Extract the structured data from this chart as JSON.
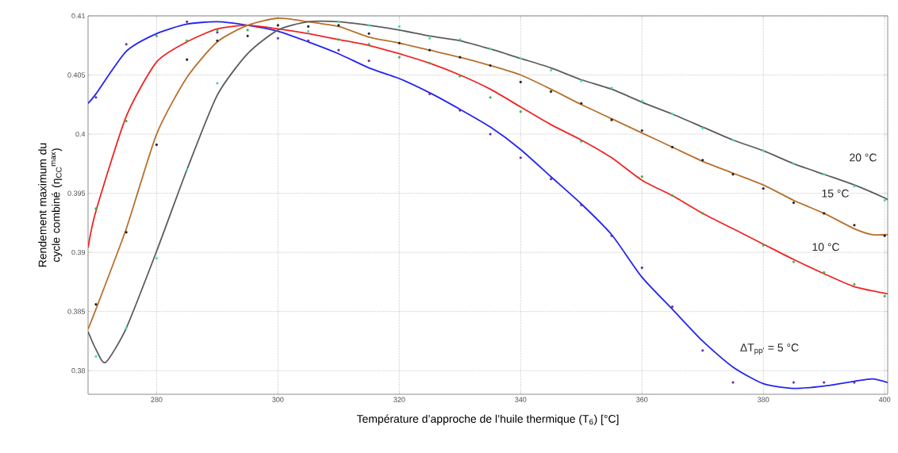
{
  "chart_data": {
    "type": "line",
    "xlabel": "Température d’approche de l’huile thermique (T$_{6}$) [°C]",
    "ylabel": "Rendement maximum du cycle combiné (η$_{CC}$$^{max}$)",
    "xlim": [
      268.7,
      400.5
    ],
    "ylim": [
      0.378,
      0.41
    ],
    "xticks": [
      280,
      300,
      320,
      340,
      360,
      380,
      400
    ],
    "yticks": [
      0.38,
      0.385,
      0.39,
      0.395,
      0.4,
      0.405,
      0.41
    ],
    "grid": true,
    "annotations": [
      "20 °C",
      "15 °C",
      "10 °C",
      "ΔT$_{pp'}$ = 5 °C"
    ],
    "series": [
      {
        "marker": "none",
        "color": "#2424f0",
        "x": [
          268.7,
          270,
          275,
          280,
          285,
          290,
          295,
          300,
          305,
          310,
          315,
          320,
          325,
          330,
          335,
          340,
          345,
          350,
          355,
          360,
          365,
          370,
          375,
          380,
          385,
          390,
          395,
          398,
          400.5
        ],
        "values": [
          0.4026,
          0.4034,
          0.407,
          0.4085,
          0.4093,
          0.4095,
          0.4092,
          0.4087,
          0.4078,
          0.4068,
          0.4056,
          0.4047,
          0.4035,
          0.4021,
          0.4006,
          0.3987,
          0.3964,
          0.3941,
          0.3915,
          0.3879,
          0.3852,
          0.3825,
          0.3803,
          0.3789,
          0.3785,
          0.3787,
          0.3791,
          0.3793,
          0.379
        ]
      },
      {
        "marker": "none",
        "color": "#f02424",
        "x": [
          268.7,
          270,
          275,
          280,
          285,
          290,
          295,
          300,
          305,
          310,
          315,
          320,
          325,
          330,
          335,
          340,
          345,
          350,
          355,
          360,
          365,
          370,
          375,
          380,
          385,
          390,
          395,
          400.5
        ],
        "values": [
          0.3904,
          0.3935,
          0.4015,
          0.4061,
          0.4078,
          0.4089,
          0.4092,
          0.4089,
          0.4085,
          0.408,
          0.4075,
          0.4068,
          0.406,
          0.405,
          0.4038,
          0.4023,
          0.4008,
          0.3995,
          0.398,
          0.3961,
          0.3948,
          0.3933,
          0.392,
          0.3907,
          0.3894,
          0.3882,
          0.3871,
          0.3865
        ]
      },
      {
        "marker": "none",
        "color": "#b8702c",
        "x": [
          268.7,
          270,
          275,
          280,
          285,
          290,
          295,
          300,
          305,
          310,
          315,
          320,
          325,
          330,
          335,
          340,
          345,
          350,
          355,
          360,
          365,
          370,
          375,
          380,
          385,
          390,
          395,
          398,
          400.5
        ],
        "values": [
          0.3835,
          0.3852,
          0.392,
          0.4,
          0.4048,
          0.4078,
          0.4092,
          0.4098,
          0.4095,
          0.4091,
          0.4082,
          0.4077,
          0.4071,
          0.4065,
          0.4058,
          0.405,
          0.4038,
          0.4025,
          0.4013,
          0.4001,
          0.3989,
          0.3977,
          0.3967,
          0.3957,
          0.3944,
          0.3933,
          0.392,
          0.3915,
          0.3915
        ]
      },
      {
        "marker": "none",
        "color": "#5c5c5c",
        "x": [
          268.7,
          270,
          271.6,
          275,
          280,
          285,
          290,
          295,
          300,
          305,
          310,
          315,
          320,
          325,
          330,
          335,
          340,
          345,
          350,
          355,
          360,
          365,
          370,
          375,
          380,
          385,
          390,
          395,
          400,
          400.5
        ],
        "values": [
          0.3833,
          0.3818,
          0.3807,
          0.3836,
          0.3901,
          0.397,
          0.4033,
          0.4068,
          0.4088,
          0.4095,
          0.4095,
          0.4092,
          0.4088,
          0.4083,
          0.4079,
          0.4072,
          0.4064,
          0.4056,
          0.4046,
          0.4038,
          0.4027,
          0.4017,
          0.4006,
          0.3995,
          0.3986,
          0.3975,
          0.3966,
          0.3957,
          0.3946,
          0.3944
        ]
      },
      {
        "type": "scatter",
        "marker": "circle",
        "color": "#6a2fa0",
        "x": [
          270,
          275,
          285,
          290,
          300,
          305,
          310,
          315,
          325,
          330,
          335,
          340,
          345,
          350,
          355,
          360,
          365,
          370,
          375,
          385,
          390,
          395
        ],
        "values": [
          0.4031,
          0.4076,
          0.4095,
          0.4086,
          0.4081,
          0.4079,
          0.4071,
          0.4062,
          0.4034,
          0.402,
          0.4,
          0.398,
          0.3962,
          0.394,
          0.3914,
          0.3887,
          0.3854,
          0.3817,
          0.379,
          0.379,
          0.379,
          0.379
        ]
      },
      {
        "type": "scatter",
        "marker": "circle",
        "color": "#3cb34a",
        "x": [
          270,
          275,
          280,
          285,
          290,
          295,
          310,
          315,
          320,
          325,
          330,
          335,
          340,
          350,
          360,
          365,
          370,
          380,
          385,
          390,
          395,
          400
        ],
        "values": [
          0.3937,
          0.4011,
          0.4083,
          0.4079,
          0.4088,
          0.4088,
          0.408,
          0.4076,
          0.4065,
          0.406,
          0.4049,
          0.4031,
          0.4019,
          0.3994,
          0.3964,
          0.3948,
          0.3933,
          0.3906,
          0.3892,
          0.3883,
          0.3873,
          0.3863
        ]
      },
      {
        "type": "scatter",
        "marker": "circle",
        "color": "#202020",
        "x": [
          270,
          275,
          280,
          285,
          290,
          295,
          300,
          305,
          310,
          315,
          320,
          325,
          330,
          335,
          340,
          345,
          350,
          355,
          360,
          365,
          370,
          375,
          380,
          385,
          390,
          395,
          400
        ],
        "values": [
          0.3856,
          0.3917,
          0.3991,
          0.4063,
          0.4079,
          0.4083,
          0.4092,
          0.4091,
          0.4092,
          0.4085,
          0.4077,
          0.4071,
          0.4065,
          0.4058,
          0.4044,
          0.4036,
          0.4026,
          0.4012,
          0.4003,
          0.3989,
          0.3978,
          0.3966,
          0.3954,
          0.3942,
          0.3933,
          0.3923,
          0.3914
        ]
      },
      {
        "type": "scatter",
        "marker": "circle",
        "color": "#40e0a0",
        "x": [
          270,
          275,
          280,
          285,
          290,
          305,
          310,
          315,
          320,
          325,
          330,
          335,
          340,
          345,
          350,
          355,
          360,
          365,
          370,
          375,
          380,
          385,
          390,
          395,
          400
        ],
        "values": [
          0.3812,
          0.3836,
          0.3895,
          0.397,
          0.4043,
          0.4087,
          0.4095,
          0.4092,
          0.4091,
          0.4081,
          0.408,
          0.4072,
          0.4064,
          0.4054,
          0.4045,
          0.4039,
          0.4028,
          0.4017,
          0.4005,
          0.3995,
          0.3986,
          0.3975,
          0.3966,
          0.3956,
          0.3944
        ]
      }
    ]
  }
}
